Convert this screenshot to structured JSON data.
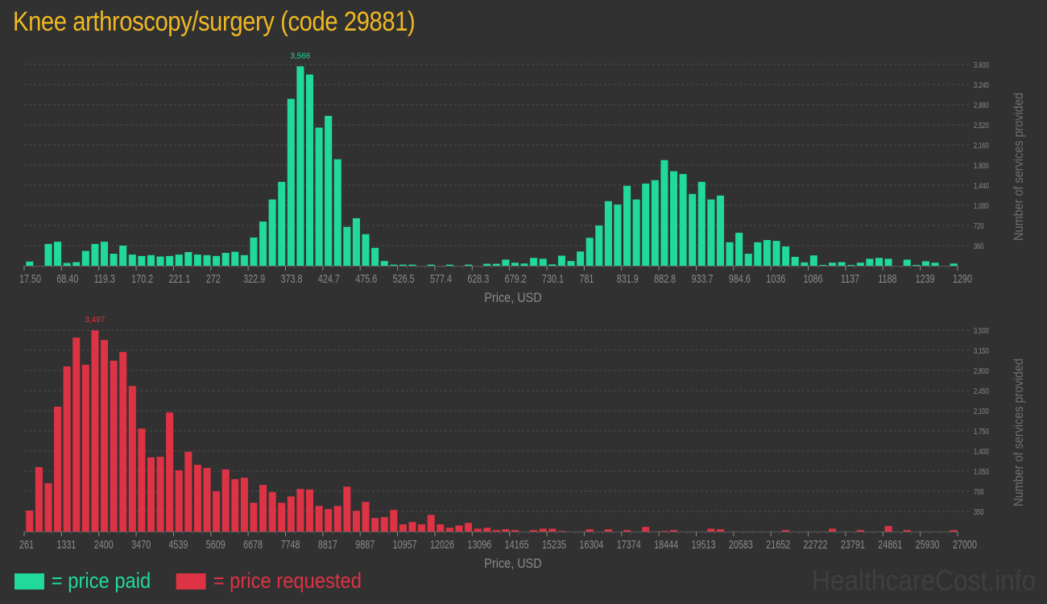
{
  "title": "Knee arthroscopy/surgery (code 29881)",
  "colors": {
    "background": "#313131",
    "title": "#f0b922",
    "paid": "#21d99b",
    "requested": "#dd3344",
    "axis_text": "#8a8a8a",
    "grid": "#4d4d4d",
    "watermark": "#3f3f3f"
  },
  "legend": {
    "paid_label": "= price paid",
    "requested_label": "= price requested"
  },
  "watermark": "HealthcareCost.info",
  "chart_data": [
    {
      "type": "bar",
      "name": "price paid",
      "title": "",
      "xlabel": "Price, USD",
      "ylabel": "Number of services provided",
      "color": "#21d99b",
      "x_range": [
        17.5,
        1290
      ],
      "ylim": [
        0,
        3600
      ],
      "y_ticks": [
        360,
        720,
        1080,
        1440,
        1800,
        2160,
        2520,
        2880,
        3240,
        3600
      ],
      "y_tick_labels": [
        "360",
        "720",
        "1,080",
        "1,440",
        "1,800",
        "2,160",
        "2,520",
        "2,880",
        "3,240",
        "3,600"
      ],
      "x_tick_labels": [
        "17.50",
        "68.40",
        "119.3",
        "170.2",
        "221.1",
        "272",
        "322.9",
        "373.8",
        "424.7",
        "475.6",
        "526.5",
        "577.4",
        "628.3",
        "679.2",
        "730.1",
        "781",
        "831.9",
        "882.8",
        "933.7",
        "984.6",
        "1036",
        "1086",
        "1137",
        "1188",
        "1239",
        "1290"
      ],
      "peak_label": "3,566",
      "peak_index": 29,
      "bin_count": 100,
      "values": [
        75,
        0,
        390,
        430,
        50,
        65,
        265,
        390,
        430,
        215,
        360,
        200,
        175,
        190,
        165,
        175,
        200,
        245,
        200,
        190,
        175,
        230,
        250,
        190,
        505,
        790,
        1185,
        1500,
        2985,
        3566,
        3420,
        2470,
        2680,
        1905,
        695,
        850,
        565,
        320,
        85,
        20,
        20,
        20,
        0,
        20,
        0,
        20,
        0,
        20,
        0,
        35,
        35,
        110,
        55,
        40,
        140,
        125,
        25,
        180,
        85,
        255,
        500,
        720,
        1155,
        1095,
        1430,
        1185,
        1470,
        1530,
        1890,
        1690,
        1640,
        1285,
        1500,
        1185,
        1255,
        420,
        590,
        215,
        420,
        460,
        445,
        345,
        160,
        60,
        185,
        15,
        55,
        65,
        15,
        55,
        125,
        140,
        125,
        0,
        110,
        15,
        80,
        55,
        0,
        40
      ],
      "grid": true,
      "y_axis_position": "right"
    },
    {
      "type": "bar",
      "name": "price requested",
      "title": "",
      "xlabel": "Price, USD",
      "ylabel": "Number of services provided",
      "color": "#dd3344",
      "x_range": [
        261,
        27000
      ],
      "ylim": [
        0,
        3500
      ],
      "y_ticks": [
        350,
        700,
        1050,
        1400,
        1750,
        2100,
        2450,
        2800,
        3150,
        3500
      ],
      "y_tick_labels": [
        "350",
        "700",
        "1,050",
        "1,400",
        "1,750",
        "2,100",
        "2,450",
        "2,800",
        "3,150",
        "3,500"
      ],
      "x_tick_labels": [
        "261",
        "1331",
        "2400",
        "3470",
        "4539",
        "5609",
        "6678",
        "7748",
        "8817",
        "9887",
        "10957",
        "12026",
        "13096",
        "14165",
        "15235",
        "16304",
        "17374",
        "18444",
        "19513",
        "20583",
        "21652",
        "22722",
        "23791",
        "24861",
        "25930",
        "27000"
      ],
      "peak_label": "3,497",
      "peak_index": 7,
      "bin_count": 100,
      "values": [
        365,
        1120,
        840,
        2170,
        2870,
        3370,
        2900,
        3497,
        3330,
        2970,
        3120,
        2530,
        1790,
        1290,
        1300,
        2070,
        1065,
        1385,
        1160,
        1105,
        700,
        1080,
        910,
        935,
        500,
        810,
        685,
        500,
        610,
        740,
        730,
        445,
        390,
        445,
        780,
        360,
        515,
        235,
        250,
        375,
        125,
        165,
        125,
        290,
        125,
        65,
        105,
        150,
        50,
        65,
        25,
        40,
        25,
        0,
        25,
        50,
        50,
        10,
        0,
        0,
        40,
        0,
        40,
        0,
        25,
        0,
        80,
        0,
        10,
        25,
        0,
        0,
        0,
        50,
        40,
        0,
        0,
        0,
        0,
        0,
        0,
        25,
        0,
        0,
        0,
        0,
        50,
        0,
        0,
        25,
        0,
        0,
        95,
        0,
        25,
        0,
        0,
        0,
        0,
        25
      ],
      "grid": true,
      "y_axis_position": "right"
    }
  ]
}
